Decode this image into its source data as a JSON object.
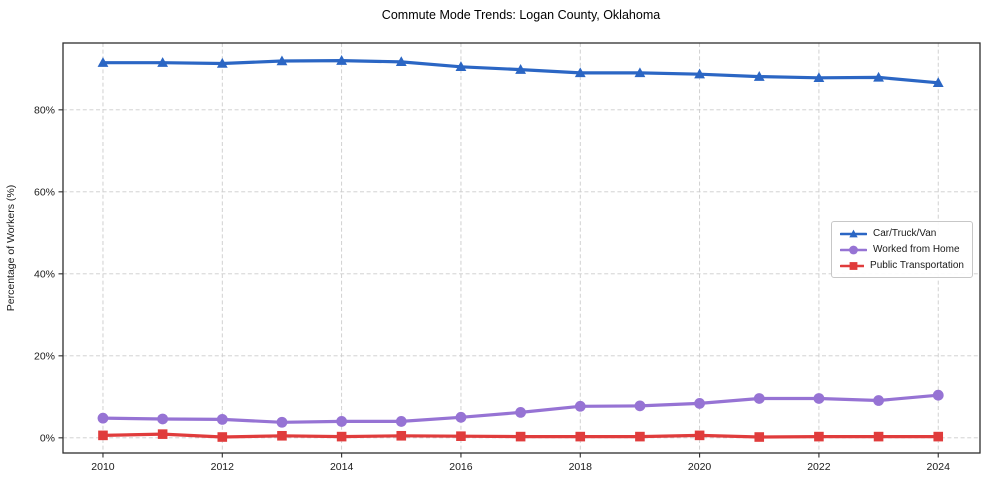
{
  "chart_data": {
    "type": "line",
    "title": "Commute Mode Trends: Logan County, Oklahoma",
    "xlabel": "",
    "ylabel": "Percentage of Workers (%)",
    "x": [
      2010,
      2011,
      2012,
      2013,
      2014,
      2015,
      2016,
      2017,
      2018,
      2019,
      2020,
      2021,
      2022,
      2023,
      2024
    ],
    "series": [
      {
        "name": "Car/Truck/Van",
        "marker": "triangle",
        "color": "#2b66c4",
        "values": [
          91.5,
          91.5,
          91.3,
          91.9,
          92.0,
          91.7,
          90.5,
          89.8,
          89.0,
          89.0,
          88.7,
          88.1,
          87.8,
          87.9,
          86.6
        ]
      },
      {
        "name": "Worked from Home",
        "marker": "circle",
        "color": "#9673d4",
        "values": [
          4.8,
          4.6,
          4.5,
          3.8,
          4.0,
          4.0,
          5.0,
          6.2,
          7.7,
          7.8,
          8.4,
          9.6,
          9.6,
          9.1,
          10.4
        ]
      },
      {
        "name": "Public Transportation",
        "marker": "square",
        "color": "#e03c3c",
        "values": [
          0.6,
          0.9,
          0.2,
          0.5,
          0.3,
          0.5,
          0.4,
          0.3,
          0.3,
          0.3,
          0.6,
          0.2,
          0.3,
          0.3,
          0.3
        ]
      }
    ],
    "x_ticks": [
      2010,
      2012,
      2014,
      2016,
      2018,
      2020,
      2022,
      2024
    ],
    "y_ticks": [
      {
        "value": 0,
        "label": "0%"
      },
      {
        "value": 20,
        "label": "20%"
      },
      {
        "value": 40,
        "label": "40%"
      },
      {
        "value": 60,
        "label": "60%"
      },
      {
        "value": 80,
        "label": "80%"
      }
    ],
    "xlim": [
      2009.33,
      2024.7
    ],
    "ylim": [
      -3.7,
      96.3
    ],
    "grid": true,
    "legend_position": "center right"
  },
  "colors": {
    "background": "#ffffff",
    "plot_border": "#2e2e2e",
    "gridline": "#cccccc",
    "tick": "#2e2e2e",
    "text": "#1a1a1a"
  }
}
